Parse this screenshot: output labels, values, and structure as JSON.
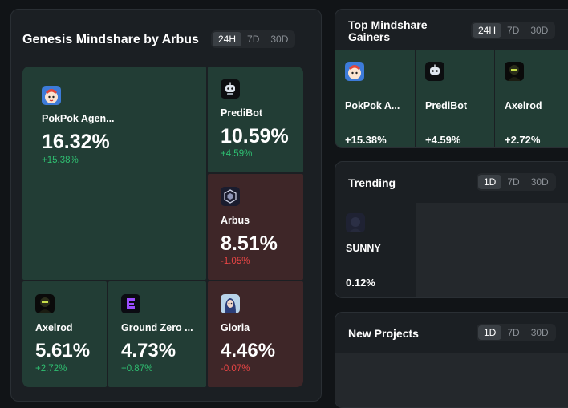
{
  "genesis": {
    "title": "Genesis Mindshare by Arbus",
    "tabs": [
      "24H",
      "7D",
      "30D"
    ],
    "active_tab": "24H",
    "tiles": [
      {
        "name": "PokPok Agen...",
        "mindshare": "16.32%",
        "change": "+15.38%",
        "trend": "up",
        "icon": "pokpok-avatar-icon"
      },
      {
        "name": "PrediBot",
        "mindshare": "10.59%",
        "change": "+4.59%",
        "trend": "up",
        "icon": "robot-icon"
      },
      {
        "name": "Arbus",
        "mindshare": "8.51%",
        "change": "-1.05%",
        "trend": "down",
        "icon": "arbus-logo-icon"
      },
      {
        "name": "Axelrod",
        "mindshare": "5.61%",
        "change": "+2.72%",
        "trend": "up",
        "icon": "axelrod-avatar-icon"
      },
      {
        "name": "Ground Zero ...",
        "mindshare": "4.73%",
        "change": "+0.87%",
        "trend": "up",
        "icon": "ground-zero-logo-icon"
      },
      {
        "name": "Gloria",
        "mindshare": "4.46%",
        "change": "-0.07%",
        "trend": "down",
        "icon": "gloria-avatar-icon"
      }
    ]
  },
  "gainers": {
    "title_line1": "Top Mindshare",
    "title_line2": "Gainers",
    "tabs": [
      "24H",
      "7D",
      "30D"
    ],
    "active_tab": "24H",
    "items": [
      {
        "name": "PokPok A...",
        "change": "+15.38%",
        "icon": "pokpok-avatar-icon"
      },
      {
        "name": "PrediBot",
        "change": "+4.59%",
        "icon": "robot-icon"
      },
      {
        "name": "Axelrod",
        "change": "+2.72%",
        "icon": "axelrod-avatar-icon"
      }
    ]
  },
  "trending": {
    "title": "Trending",
    "tabs": [
      "1D",
      "7D",
      "30D"
    ],
    "active_tab": "1D",
    "items": [
      {
        "name": "SUNNY",
        "value": "0.12%",
        "icon": "sunny-avatar-icon"
      }
    ]
  },
  "new_projects": {
    "title": "New Projects",
    "tabs": [
      "1D",
      "7D",
      "30D"
    ],
    "active_tab": "1D"
  },
  "colors": {
    "positive": "#2fbf71",
    "negative": "#e84545",
    "tile_green": "#223d35",
    "tile_red": "#3e2628"
  }
}
